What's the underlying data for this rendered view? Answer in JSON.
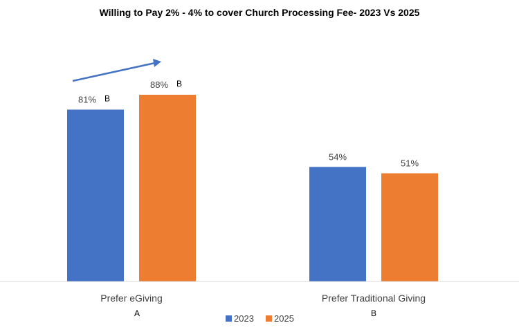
{
  "chart_data": {
    "type": "bar",
    "title": "Willing to Pay 2% - 4% to cover Church Processing Fee-  2023 Vs 2025",
    "categories": [
      "Prefer eGiving",
      "Prefer Traditional Giving"
    ],
    "group_letters": [
      "A",
      "B"
    ],
    "series": [
      {
        "name": "2023",
        "color": "#4472C4",
        "values": [
          81,
          54
        ],
        "labels": [
          "81%",
          "54%"
        ],
        "significance": [
          "B",
          ""
        ]
      },
      {
        "name": "2025",
        "color": "#ED7D31",
        "values": [
          88,
          51
        ],
        "labels": [
          "88%",
          "51%"
        ],
        "significance": [
          "B",
          ""
        ]
      }
    ],
    "ylim": [
      0,
      100
    ],
    "grid": false,
    "legend": "bottom",
    "arrow_color": "#4472C4",
    "axis_color": "#D9D9D9"
  }
}
